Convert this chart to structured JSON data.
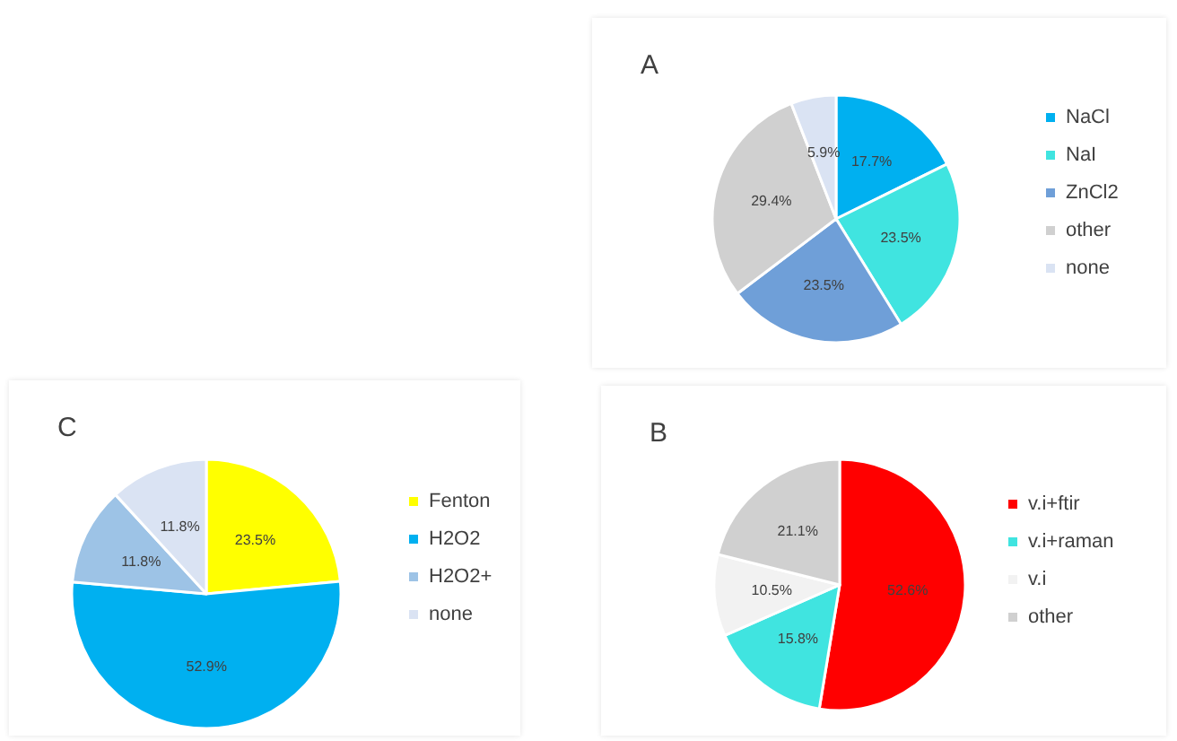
{
  "chart_data": [
    {
      "type": "pie",
      "title": "A",
      "categories": [
        "NaCl",
        "NaI",
        "ZnCl2",
        "other",
        "none"
      ],
      "values": [
        17.7,
        23.5,
        23.5,
        29.4,
        5.9
      ],
      "colors": [
        "#00b0f0",
        "#40e4e0",
        "#6f9fd8",
        "#d0d0d0",
        "#dae3f3"
      ],
      "value_labels": [
        "17.7%",
        "23.5%",
        "23.5%",
        "29.4%",
        "5.9%"
      ],
      "legend": "right"
    },
    {
      "type": "pie",
      "title": "C",
      "categories": [
        "Fenton",
        "H2O2",
        "H2O2+",
        "none"
      ],
      "values": [
        23.5,
        52.9,
        11.8,
        11.8
      ],
      "colors": [
        "#ffff00",
        "#00b0f0",
        "#9dc3e6",
        "#dae3f3"
      ],
      "value_labels": [
        "23.5%",
        "52.9%",
        "11.8%",
        "11.8%"
      ],
      "legend": "right"
    },
    {
      "type": "pie",
      "title": "B",
      "categories": [
        "v.i+ftir",
        "v.i+raman",
        "v.i",
        "other"
      ],
      "values": [
        52.6,
        15.8,
        10.5,
        21.1
      ],
      "colors": [
        "#ff0000",
        "#40e4e0",
        "#f2f2f2",
        "#d0d0d0"
      ],
      "value_labels": [
        "52.6%",
        "15.8%",
        "10.5%",
        "21.1%"
      ],
      "legend": "right"
    }
  ]
}
